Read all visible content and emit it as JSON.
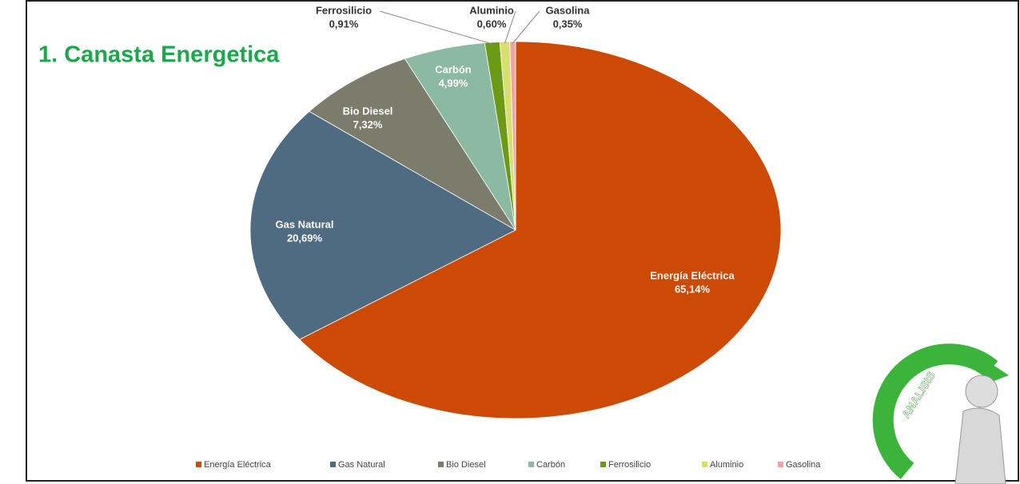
{
  "chart_data": {
    "type": "pie",
    "title": "1. Canasta Energetica",
    "categories": [
      "Energía Eléctrica",
      "Gas Natural",
      "Bio Diesel",
      "Carbón",
      "Ferrosilicio",
      "Aluminio",
      "Gasolina"
    ],
    "values": [
      65.14,
      20.69,
      7.32,
      4.99,
      0.91,
      0.6,
      0.35
    ],
    "value_labels": [
      "65,14%",
      "20,69%",
      "7,32%",
      "4,99%",
      "0,91%",
      "0,60%",
      "0,35%"
    ],
    "colors": [
      "#cc4a06",
      "#4e6b82",
      "#7b7c6c",
      "#8cb9a2",
      "#6c9a16",
      "#d9df6e",
      "#f0a3a3"
    ],
    "legend": "bottom"
  },
  "logo": {
    "text": "ANALISIS"
  }
}
